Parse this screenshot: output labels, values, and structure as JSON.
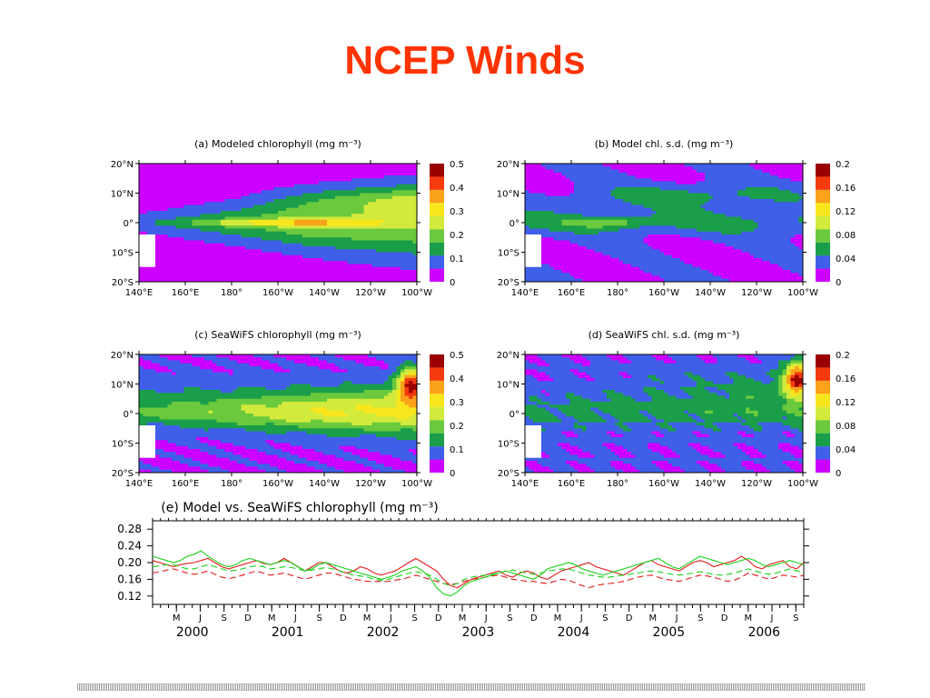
{
  "slide": {
    "title": "NCEP Winds"
  },
  "colors": {
    "title": "#ff3300",
    "colorbar": [
      "#cc00ff",
      "#3f5fe8",
      "#1a9e4a",
      "#6ac93c",
      "#d2ea3c",
      "#f8e61c",
      "#fba21b",
      "#f53a10",
      "#9a0000"
    ],
    "model_solid": "#e01c1c",
    "model_dashed": "#e01c1c",
    "seawifs_solid": "#1ad01a",
    "seawifs_dashed": "#1ad01a"
  },
  "chart_data": [
    {
      "id": "a",
      "type": "heatmap",
      "title": "(a) Modeled chlorophyll (mg m⁻³)",
      "x_ticks": [
        "140°E",
        "160°E",
        "180°",
        "160°W",
        "140°W",
        "120°W",
        "100°W"
      ],
      "y_ticks": [
        "20°N",
        "10°N",
        "0°",
        "10°S",
        "20°S"
      ],
      "colorbar_labels": [
        "0.5",
        "0.4",
        "0.3",
        "0.2",
        "0.1",
        "0"
      ],
      "colorbar_range": [
        0,
        0.5
      ]
    },
    {
      "id": "b",
      "type": "heatmap",
      "title": "(b) Model chl. s.d. (mg m⁻³)",
      "x_ticks": [
        "140°E",
        "160°E",
        "180°",
        "160°W",
        "140°W",
        "120°W",
        "100°W"
      ],
      "y_ticks": [
        "20°N",
        "10°N",
        "0°",
        "10°S",
        "20°S"
      ],
      "colorbar_labels": [
        "0.2",
        "0.16",
        "0.12",
        "0.08",
        "0.04",
        "0"
      ],
      "colorbar_range": [
        0,
        0.2
      ]
    },
    {
      "id": "c",
      "type": "heatmap",
      "title": "(c) SeaWiFS chlorophyll (mg m⁻³)",
      "x_ticks": [
        "140°E",
        "160°E",
        "180°",
        "160°W",
        "140°W",
        "120°W",
        "100°W"
      ],
      "y_ticks": [
        "20°N",
        "10°N",
        "0°",
        "10°S",
        "20°S"
      ],
      "colorbar_labels": [
        "0.5",
        "0.4",
        "0.3",
        "0.2",
        "0.1",
        "0"
      ],
      "colorbar_range": [
        0,
        0.5
      ]
    },
    {
      "id": "d",
      "type": "heatmap",
      "title": "(d) SeaWiFS chl. s.d. (mg m⁻³)",
      "x_ticks": [
        "140°E",
        "160°E",
        "180°",
        "160°W",
        "140°W",
        "120°W",
        "100°W"
      ],
      "y_ticks": [
        "20°N",
        "10°N",
        "0°",
        "10°S",
        "20°S"
      ],
      "colorbar_labels": [
        "0.2",
        "0.16",
        "0.12",
        "0.08",
        "0.04",
        "0"
      ],
      "colorbar_range": [
        0,
        0.2
      ]
    },
    {
      "id": "e",
      "type": "line",
      "title": "(e) Model vs. SeaWiFS chlorophyll (mg m⁻³)",
      "ylim": [
        0.1,
        0.3
      ],
      "y_ticks": [
        "0.28",
        "0.24",
        "0.20",
        "0.16",
        "0.12"
      ],
      "x_start": "1999-12",
      "x_end": "2006-09",
      "month_tick_labels": [
        "M",
        "J",
        "S",
        "D"
      ],
      "year_labels": [
        "2000",
        "2001",
        "2002",
        "2003",
        "2004",
        "2005",
        "2006"
      ],
      "series": [
        {
          "style": "solid",
          "color": "#e01c1c",
          "values": [
            0.205,
            0.2,
            0.195,
            0.19,
            0.195,
            0.198,
            0.2,
            0.205,
            0.21,
            0.2,
            0.19,
            0.185,
            0.19,
            0.195,
            0.2,
            0.205,
            0.198,
            0.195,
            0.2,
            0.21,
            0.2,
            0.19,
            0.18,
            0.19,
            0.2,
            0.2,
            0.19,
            0.18,
            0.175,
            0.18,
            0.19,
            0.185,
            0.175,
            0.17,
            0.175,
            0.18,
            0.19,
            0.2,
            0.21,
            0.2,
            0.19,
            0.18,
            0.16,
            0.145,
            0.14,
            0.15,
            0.16,
            0.165,
            0.17,
            0.175,
            0.18,
            0.17,
            0.165,
            0.175,
            0.18,
            0.175,
            0.165,
            0.16,
            0.17,
            0.18,
            0.185,
            0.19,
            0.195,
            0.2,
            0.19,
            0.185,
            0.18,
            0.175,
            0.17,
            0.18,
            0.19,
            0.2,
            0.205,
            0.195,
            0.19,
            0.185,
            0.18,
            0.19,
            0.2,
            0.205,
            0.2,
            0.19,
            0.195,
            0.2,
            0.205,
            0.215,
            0.205,
            0.19,
            0.185,
            0.195,
            0.2,
            0.205,
            0.19,
            0.185,
            0.2
          ]
        },
        {
          "style": "dashed",
          "color": "#e01c1c",
          "values": [
            0.175,
            0.178,
            0.182,
            0.185,
            0.18,
            0.175,
            0.172,
            0.175,
            0.18,
            0.172,
            0.165,
            0.162,
            0.165,
            0.17,
            0.175,
            0.18,
            0.175,
            0.17,
            0.172,
            0.175,
            0.17,
            0.165,
            0.16,
            0.165,
            0.17,
            0.175,
            0.175,
            0.17,
            0.165,
            0.16,
            0.158,
            0.155,
            0.155,
            0.155,
            0.155,
            0.158,
            0.16,
            0.165,
            0.17,
            0.165,
            0.16,
            0.155,
            0.15,
            0.148,
            0.15,
            0.155,
            0.16,
            0.162,
            0.165,
            0.168,
            0.17,
            0.165,
            0.16,
            0.158,
            0.155,
            0.155,
            0.152,
            0.15,
            0.155,
            0.16,
            0.158,
            0.152,
            0.145,
            0.14,
            0.145,
            0.148,
            0.15,
            0.152,
            0.155,
            0.16,
            0.165,
            0.168,
            0.17,
            0.165,
            0.16,
            0.158,
            0.155,
            0.16,
            0.165,
            0.17,
            0.168,
            0.165,
            0.16,
            0.155,
            0.158,
            0.165,
            0.175,
            0.17,
            0.165,
            0.16,
            0.165,
            0.17,
            0.168,
            0.165,
            0.17
          ]
        },
        {
          "style": "solid",
          "color": "#1ad01a",
          "values": [
            0.215,
            0.21,
            0.205,
            0.2,
            0.205,
            0.215,
            0.22,
            0.228,
            0.215,
            0.205,
            0.195,
            0.19,
            0.195,
            0.205,
            0.21,
            0.205,
            0.2,
            0.195,
            0.2,
            0.205,
            0.2,
            0.19,
            0.18,
            0.185,
            0.195,
            0.2,
            0.195,
            0.19,
            0.185,
            0.18,
            0.175,
            0.17,
            0.165,
            0.16,
            0.165,
            0.17,
            0.18,
            0.185,
            0.19,
            0.18,
            0.165,
            0.14,
            0.125,
            0.12,
            0.13,
            0.145,
            0.155,
            0.16,
            0.165,
            0.17,
            0.175,
            0.18,
            0.175,
            0.17,
            0.165,
            0.16,
            0.17,
            0.185,
            0.19,
            0.195,
            0.2,
            0.195,
            0.185,
            0.18,
            0.175,
            0.17,
            0.175,
            0.18,
            0.185,
            0.19,
            0.195,
            0.2,
            0.205,
            0.21,
            0.2,
            0.19,
            0.185,
            0.195,
            0.205,
            0.215,
            0.21,
            0.205,
            0.2,
            0.195,
            0.2,
            0.205,
            0.21,
            0.205,
            0.195,
            0.19,
            0.195,
            0.2,
            0.205,
            0.2,
            0.195
          ]
        },
        {
          "style": "dashed",
          "color": "#1ad01a",
          "values": [
            0.19,
            0.192,
            0.195,
            0.195,
            0.19,
            0.185,
            0.185,
            0.19,
            0.195,
            0.19,
            0.185,
            0.18,
            0.182,
            0.185,
            0.19,
            0.192,
            0.19,
            0.185,
            0.187,
            0.19,
            0.188,
            0.185,
            0.18,
            0.182,
            0.185,
            0.188,
            0.185,
            0.18,
            0.175,
            0.17,
            0.168,
            0.165,
            0.16,
            0.158,
            0.16,
            0.165,
            0.17,
            0.175,
            0.178,
            0.175,
            0.17,
            0.16,
            0.15,
            0.145,
            0.15,
            0.16,
            0.165,
            0.168,
            0.17,
            0.172,
            0.175,
            0.18,
            0.182,
            0.178,
            0.175,
            0.172,
            0.175,
            0.18,
            0.182,
            0.185,
            0.185,
            0.18,
            0.175,
            0.17,
            0.168,
            0.165,
            0.165,
            0.168,
            0.17,
            0.172,
            0.175,
            0.178,
            0.18,
            0.178,
            0.175,
            0.172,
            0.17,
            0.172,
            0.175,
            0.178,
            0.175,
            0.172,
            0.17,
            0.172,
            0.175,
            0.18,
            0.185,
            0.18,
            0.175,
            0.172,
            0.175,
            0.18,
            0.185,
            0.18,
            0.178
          ]
        }
      ]
    }
  ]
}
